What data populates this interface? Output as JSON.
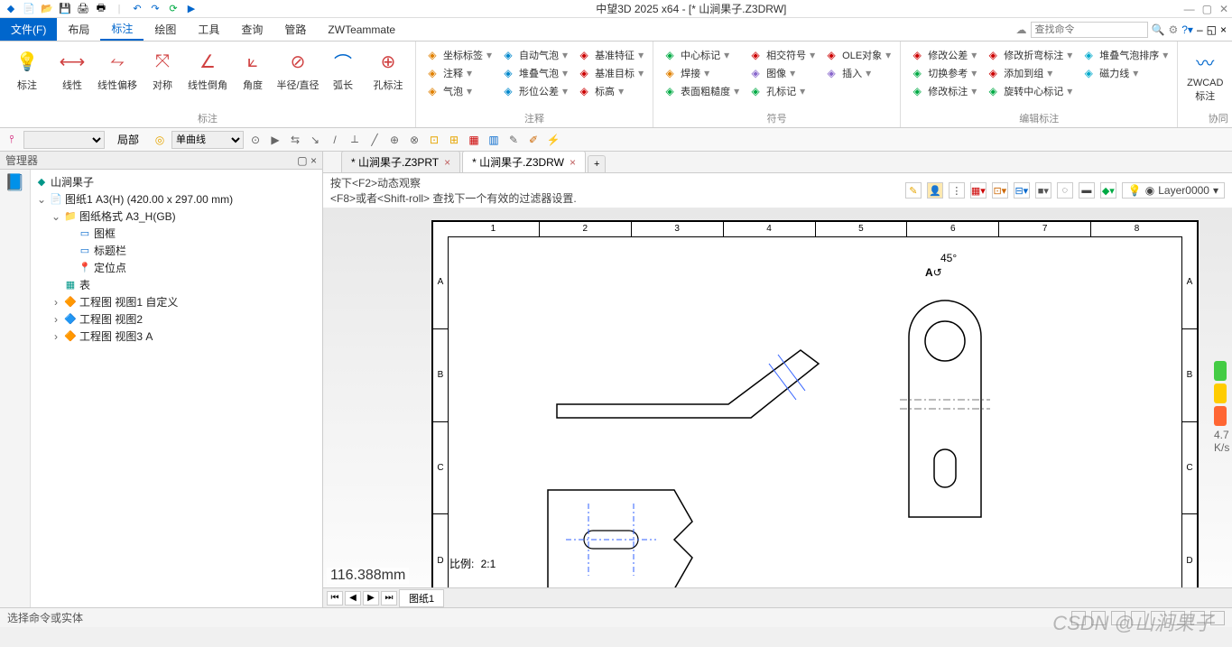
{
  "app": {
    "title": "中望3D 2025 x64 - [* 山涧果子.Z3DRW]"
  },
  "qat_icons": [
    "app",
    "new",
    "open",
    "save",
    "print",
    "print2",
    "sep",
    "undo",
    "redo",
    "refresh",
    "play"
  ],
  "menu": {
    "file": "文件(F)",
    "items": [
      "布局",
      "标注",
      "绘图",
      "工具",
      "查询",
      "管路",
      "ZWTeammate"
    ],
    "active": "标注",
    "search_placeholder": "查找命令"
  },
  "ribbon": {
    "g1": {
      "label": "标注",
      "btns": [
        {
          "n": "标注",
          "c": "#f0c020"
        },
        {
          "n": "线性",
          "c": "#d04040"
        },
        {
          "n": "线性偏移",
          "c": "#d04040"
        },
        {
          "n": "对称",
          "c": "#d04040"
        },
        {
          "n": "线性倒角",
          "c": "#d04040"
        },
        {
          "n": "角度",
          "c": "#d04040"
        },
        {
          "n": "半径/直径",
          "c": "#d04040"
        },
        {
          "n": "弧长",
          "c": "#0066cc"
        },
        {
          "n": "孔标注",
          "c": "#d04040"
        }
      ]
    },
    "g2": {
      "label": "注释",
      "cols": [
        [
          {
            "n": "坐标标签",
            "c": "#e08000"
          },
          {
            "n": "注释",
            "c": "#e08000"
          },
          {
            "n": "气泡",
            "c": "#e08000"
          }
        ],
        [
          {
            "n": "自动气泡",
            "c": "#0088cc"
          },
          {
            "n": "堆叠气泡",
            "c": "#0088cc"
          },
          {
            "n": "形位公差",
            "c": "#0088cc"
          }
        ],
        [
          {
            "n": "基准特征",
            "c": "#cc0000"
          },
          {
            "n": "基准目标",
            "c": "#cc0000"
          },
          {
            "n": "标高",
            "c": "#cc0000"
          }
        ]
      ]
    },
    "g3": {
      "label": "符号",
      "cols": [
        [
          {
            "n": "中心标记",
            "c": "#00aa44"
          },
          {
            "n": "焊接",
            "c": "#e08000"
          },
          {
            "n": "表面粗糙度",
            "c": "#00aa44"
          }
        ],
        [
          {
            "n": "相交符号",
            "c": "#cc0000"
          },
          {
            "n": "图像",
            "c": "#8866cc"
          },
          {
            "n": "孔标记",
            "c": "#00aa44"
          }
        ],
        [
          {
            "n": "OLE对象",
            "c": "#cc0000"
          },
          {
            "n": "插入",
            "c": "#8866cc"
          },
          {
            "n": "",
            "c": ""
          }
        ]
      ]
    },
    "g4": {
      "label": "编辑标注",
      "cols": [
        [
          {
            "n": "修改公差",
            "c": "#cc0000"
          },
          {
            "n": "切换参考",
            "c": "#00aa44"
          },
          {
            "n": "修改标注",
            "c": "#00aa44"
          }
        ],
        [
          {
            "n": "修改折弯标注",
            "c": "#cc0000"
          },
          {
            "n": "添加到组",
            "c": "#cc0000"
          },
          {
            "n": "旋转中心标记",
            "c": "#00aa44"
          }
        ],
        [
          {
            "n": "堆叠气泡排序",
            "c": "#00aacc"
          },
          {
            "n": "磁力线",
            "c": "#00aacc"
          },
          {
            "n": "",
            "c": ""
          }
        ]
      ]
    },
    "g5": {
      "label": "协同",
      "btn": {
        "n": "ZWCAD标注",
        "c": "#0066cc"
      }
    }
  },
  "toolbar2": {
    "scope": "局部",
    "curve": "单曲线"
  },
  "manager": {
    "title": "管理器",
    "root": "山涧果子",
    "tree": [
      {
        "d": 0,
        "e": "v",
        "i": "📄",
        "t": "图纸1 A3(H) (420.00 x 297.00 mm)",
        "c": "#0066cc"
      },
      {
        "d": 1,
        "e": "v",
        "i": "📁",
        "t": "图纸格式 A3_H(GB)",
        "c": "#0066cc"
      },
      {
        "d": 2,
        "e": "",
        "i": "▭",
        "t": "图框",
        "c": "#0066cc"
      },
      {
        "d": 2,
        "e": "",
        "i": "▭",
        "t": "标题栏",
        "c": "#0066cc"
      },
      {
        "d": 2,
        "e": "",
        "i": "📍",
        "t": "定位点",
        "c": "#cc6600"
      },
      {
        "d": 1,
        "e": "",
        "i": "▦",
        "t": "表",
        "c": "#009688"
      },
      {
        "d": 1,
        "e": ">",
        "i": "🔶",
        "t": "工程图 视图1 自定义",
        "c": "#ff9800"
      },
      {
        "d": 1,
        "e": ">",
        "i": "🔷",
        "t": "工程图 视图2",
        "c": "#ff9800"
      },
      {
        "d": 1,
        "e": ">",
        "i": "🔶",
        "t": "工程图 视图3 A",
        "c": "#ff9800"
      }
    ]
  },
  "tabs": [
    {
      "t": "* 山涧果子.Z3PRT",
      "a": false
    },
    {
      "t": "* 山涧果子.Z3DRW",
      "a": true
    }
  ],
  "hints": {
    "l1": "按下<F2>动态观察",
    "l2": "<F8>或者<Shift-roll> 查找下一个有效的过滤器设置."
  },
  "layer": "Layer0000",
  "drawing": {
    "cols": [
      "1",
      "2",
      "3",
      "4",
      "5",
      "6",
      "7",
      "8"
    ],
    "rows": [
      "A",
      "B",
      "C",
      "D"
    ],
    "coord": "116.388mm",
    "scale_label": "比例:",
    "scale_val": "2:1",
    "section": {
      "angle": "45°",
      "letter": "A"
    }
  },
  "sheetnav": {
    "tab": "图纸1"
  },
  "status": {
    "prompt": "选择命令或实体"
  },
  "watermark": "CSDN @山涧果子",
  "gauge": {
    "v": "4.7",
    "u": "K/s",
    "colors": [
      "#44cc44",
      "#ffcc00",
      "#ff6633"
    ]
  }
}
